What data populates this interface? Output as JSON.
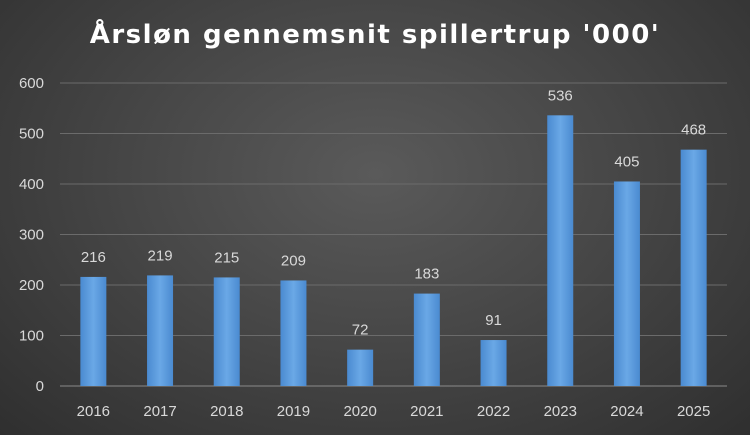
{
  "chart_data": {
    "type": "bar",
    "title": "Årsløn gennemsnit spillertrup '000'",
    "categories": [
      "2016",
      "2017",
      "2018",
      "2019",
      "2020",
      "2021",
      "2022",
      "2023",
      "2024",
      "2025"
    ],
    "values": [
      216,
      219,
      215,
      209,
      72,
      183,
      91,
      536,
      405,
      468
    ],
    "ylim": [
      0,
      600
    ],
    "yticks": [
      "0",
      "100",
      "200",
      "300",
      "400",
      "500",
      "600"
    ],
    "grid": true,
    "data_labels": true,
    "bar_color": "#5b9bd5",
    "background_color": "#474747",
    "text_color": "#d9d9d9"
  }
}
